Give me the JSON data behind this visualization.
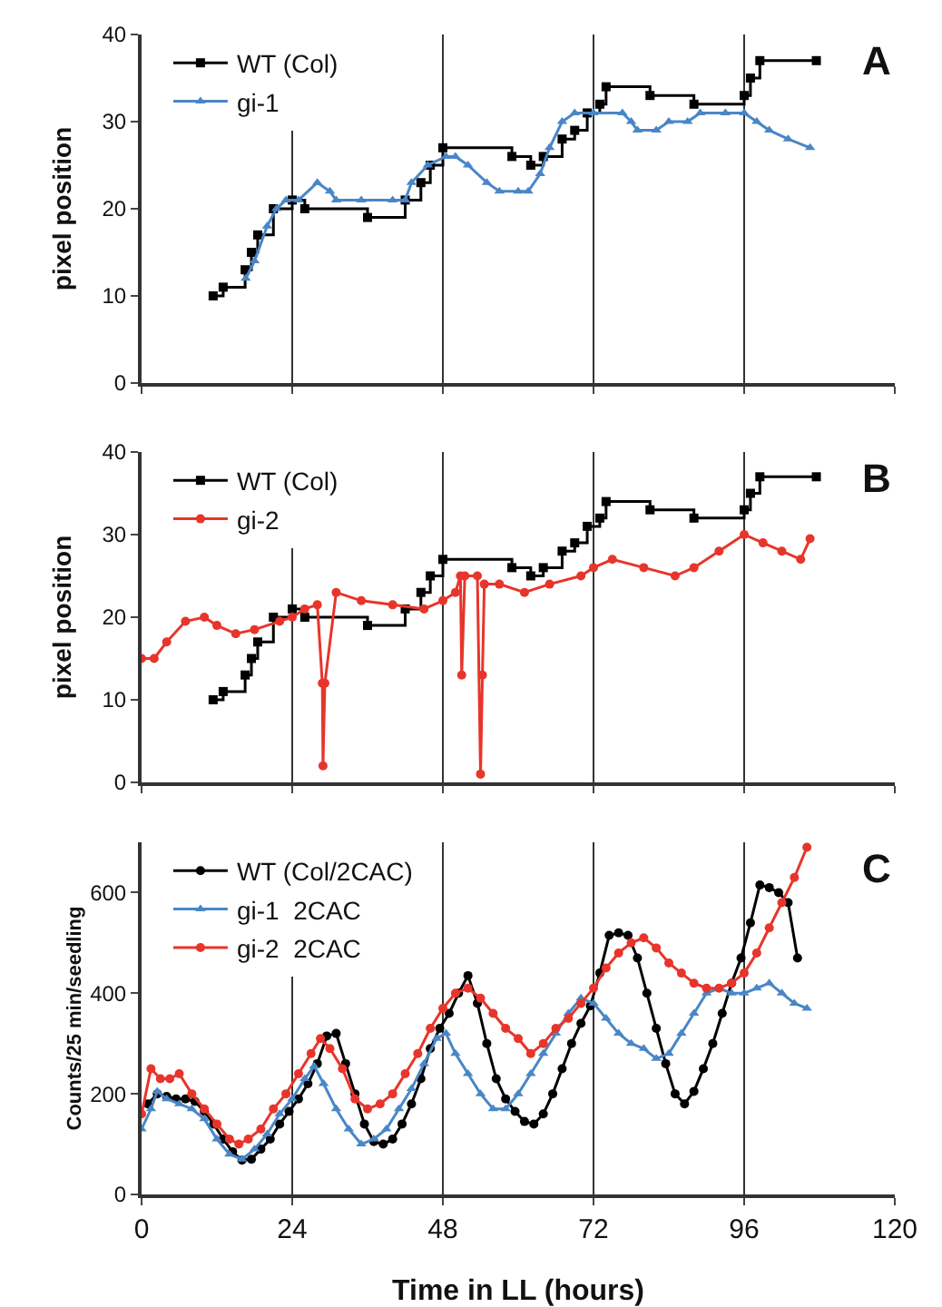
{
  "chart_data": [
    {
      "type": "line",
      "ylabel": "pixel position",
      "annotations": [
        "A"
      ],
      "xlim": [
        0,
        120
      ],
      "xticks": [
        0,
        24,
        48,
        72,
        96,
        120
      ],
      "ylim": [
        0,
        40
      ],
      "yticks": [
        0,
        10,
        20,
        30,
        40
      ],
      "grid": "x",
      "legend": "top left",
      "tick_labels": "y",
      "series": [
        {
          "name": "WT (Col)",
          "type": "step",
          "color": "#000000",
          "marker": "square",
          "x": [
            11.4,
            13,
            16.5,
            17.5,
            18.5,
            21,
            24,
            26,
            36,
            42,
            44.5,
            46,
            48,
            59,
            62,
            64,
            67,
            69,
            71,
            73,
            74,
            81,
            88,
            96,
            97,
            98.5,
            107.5
          ],
          "values": [
            10,
            11,
            13,
            15,
            17,
            20,
            21,
            20,
            19,
            21,
            23,
            25,
            27,
            26,
            25,
            26,
            28,
            29,
            31,
            32,
            34,
            33,
            32,
            33,
            35,
            37,
            37
          ]
        },
        {
          "name": "gi-1",
          "type": "line",
          "color": "#4a86c6",
          "marker": "triangle",
          "x": [
            16.6,
            18,
            20,
            21.5,
            23,
            25,
            28,
            30,
            31,
            35,
            40,
            42,
            43,
            45.6,
            48.5,
            50,
            52,
            55,
            57,
            60,
            61.6,
            63.5,
            65,
            67,
            69,
            72,
            76.6,
            78,
            79,
            82,
            84,
            87,
            89,
            93,
            96,
            98,
            100,
            103,
            106.5
          ],
          "values": [
            12,
            14,
            18,
            20,
            21,
            21,
            23,
            22,
            21,
            21,
            21,
            21,
            23,
            25,
            26,
            26,
            25,
            23,
            22,
            22,
            22,
            24,
            27,
            30,
            31,
            31,
            31,
            30,
            29,
            29,
            30,
            30,
            31,
            31,
            31,
            30,
            29,
            28,
            27
          ]
        }
      ]
    },
    {
      "type": "line",
      "ylabel": "pixel position",
      "annotations": [
        "B"
      ],
      "xlim": [
        0,
        120
      ],
      "xticks": [
        0,
        24,
        48,
        72,
        96,
        120
      ],
      "ylim": [
        0,
        40
      ],
      "yticks": [
        0,
        10,
        20,
        30,
        40
      ],
      "grid": "x",
      "legend": "top left",
      "tick_labels": "y",
      "series": [
        {
          "name": "WT (Col)",
          "type": "step",
          "color": "#000000",
          "marker": "square",
          "x": [
            11.4,
            13,
            16.5,
            17.5,
            18.5,
            21,
            24,
            26,
            36,
            42,
            44.5,
            46,
            48,
            59,
            62,
            64,
            67,
            69,
            71,
            73,
            74,
            81,
            88,
            96,
            97,
            98.5,
            107.5
          ],
          "values": [
            10,
            11,
            13,
            15,
            17,
            20,
            21,
            20,
            19,
            21,
            23,
            25,
            27,
            26,
            25,
            26,
            28,
            29,
            31,
            32,
            34,
            33,
            32,
            33,
            35,
            37,
            37
          ]
        },
        {
          "name": "gi-2",
          "type": "line",
          "color": "#e8352b",
          "marker": "circle",
          "x": [
            0,
            2,
            4,
            7,
            10,
            12,
            15,
            18,
            22,
            24,
            26,
            28,
            28.8,
            28.9,
            29.2,
            31,
            35,
            40,
            45,
            48,
            50,
            50.8,
            51,
            51.5,
            53.5,
            54,
            54.3,
            54.6,
            57,
            61,
            65,
            70,
            72,
            75,
            80,
            85,
            88,
            92,
            96,
            99,
            102,
            105,
            106.5
          ],
          "values": [
            15,
            15,
            17,
            19.5,
            20,
            19,
            18,
            18.5,
            19.5,
            20,
            21,
            21.5,
            12,
            2,
            12,
            23,
            22,
            21.5,
            21,
            22,
            23,
            25,
            13,
            25,
            25,
            1,
            13,
            24,
            24,
            23,
            24,
            25,
            26,
            27,
            26,
            25,
            26,
            28,
            30,
            29,
            28,
            27,
            29.5
          ]
        }
      ]
    },
    {
      "type": "line",
      "ylabel": "Counts/25 min/seedling",
      "xlabel": "Time in LL (hours)",
      "annotations": [
        "C"
      ],
      "xlim": [
        0,
        120
      ],
      "xticks": [
        0,
        24,
        48,
        72,
        96,
        120
      ],
      "ylim": [
        0,
        700
      ],
      "yticks": [
        0,
        200,
        400,
        600
      ],
      "grid": "x",
      "legend": "top left",
      "series": [
        {
          "name": "WT (Col/2CAC)",
          "type": "line",
          "color": "#000000",
          "marker": "circle",
          "x": [
            1,
            2.5,
            4,
            5.5,
            7,
            8.5,
            10,
            11.5,
            13,
            14.5,
            16,
            17.5,
            19,
            20.5,
            22,
            23.5,
            25,
            26.5,
            28,
            29.5,
            31,
            32.5,
            34,
            35.5,
            37,
            38.5,
            40,
            41.5,
            43,
            44.5,
            46,
            47.5,
            49,
            50.5,
            52,
            53.5,
            55,
            56.5,
            58,
            59.5,
            61,
            62.5,
            64,
            65.5,
            67,
            68.5,
            70,
            71.5,
            73,
            74.5,
            76,
            77.5,
            79,
            80.5,
            82,
            83.5,
            85,
            86.5,
            88,
            89.5,
            91,
            92.5,
            94,
            95.5,
            97,
            98.5,
            100,
            101.5,
            103,
            104.5
          ],
          "values": [
            180,
            200,
            195,
            190,
            190,
            185,
            165,
            140,
            110,
            85,
            68,
            70,
            90,
            110,
            140,
            165,
            190,
            220,
            260,
            315,
            320,
            260,
            200,
            140,
            105,
            100,
            110,
            140,
            180,
            230,
            290,
            330,
            360,
            400,
            435,
            380,
            300,
            230,
            190,
            165,
            145,
            140,
            160,
            200,
            250,
            300,
            340,
            375,
            440,
            515,
            520,
            515,
            470,
            400,
            330,
            260,
            200,
            180,
            205,
            250,
            300,
            360,
            420,
            470,
            540,
            615,
            610,
            600,
            580,
            470
          ]
        },
        {
          "name": "gi-1  2CAC",
          "type": "line",
          "color": "#4a86c6",
          "marker": "triangle",
          "x": [
            0,
            1.5,
            2.5,
            4,
            6,
            8,
            10,
            12,
            14,
            16,
            18,
            20,
            22,
            24,
            26,
            27.5,
            29,
            31,
            33,
            35,
            37,
            39,
            41,
            43,
            45,
            47,
            48.5,
            50,
            52,
            54,
            56,
            58,
            60,
            62,
            64,
            66,
            68,
            70,
            72,
            74,
            76,
            78,
            80,
            82,
            84,
            86,
            88,
            90,
            92,
            94,
            96,
            98,
            100,
            102,
            104,
            106
          ],
          "values": [
            130,
            170,
            205,
            190,
            180,
            170,
            150,
            110,
            80,
            70,
            90,
            120,
            160,
            190,
            230,
            255,
            220,
            170,
            130,
            100,
            110,
            130,
            170,
            210,
            260,
            310,
            320,
            280,
            240,
            200,
            170,
            170,
            200,
            240,
            280,
            320,
            360,
            390,
            380,
            350,
            320,
            300,
            290,
            270,
            280,
            320,
            360,
            400,
            410,
            400,
            400,
            410,
            420,
            400,
            380,
            370
          ]
        },
        {
          "name": "gi-2  2CAC",
          "type": "line",
          "color": "#e8352b",
          "marker": "circle",
          "x": [
            0,
            1.5,
            3,
            4.5,
            6,
            8,
            10,
            12,
            14,
            15.5,
            17,
            19,
            21,
            23,
            25,
            27,
            28.5,
            30,
            32,
            34,
            36,
            38,
            40,
            42,
            44,
            46,
            48,
            50,
            52,
            54,
            56,
            58,
            60,
            62,
            64,
            66,
            68,
            70,
            72,
            74,
            76,
            78,
            80,
            82,
            84,
            86,
            88,
            90,
            92,
            94,
            96,
            98,
            100,
            102,
            104,
            106
          ],
          "values": [
            160,
            250,
            230,
            230,
            240,
            200,
            170,
            140,
            110,
            100,
            110,
            130,
            170,
            200,
            240,
            280,
            310,
            290,
            250,
            190,
            170,
            180,
            200,
            240,
            280,
            330,
            370,
            400,
            410,
            390,
            360,
            330,
            310,
            280,
            300,
            330,
            350,
            380,
            410,
            450,
            480,
            500,
            510,
            490,
            460,
            440,
            420,
            410,
            410,
            420,
            440,
            480,
            530,
            580,
            630,
            690
          ]
        }
      ]
    }
  ]
}
